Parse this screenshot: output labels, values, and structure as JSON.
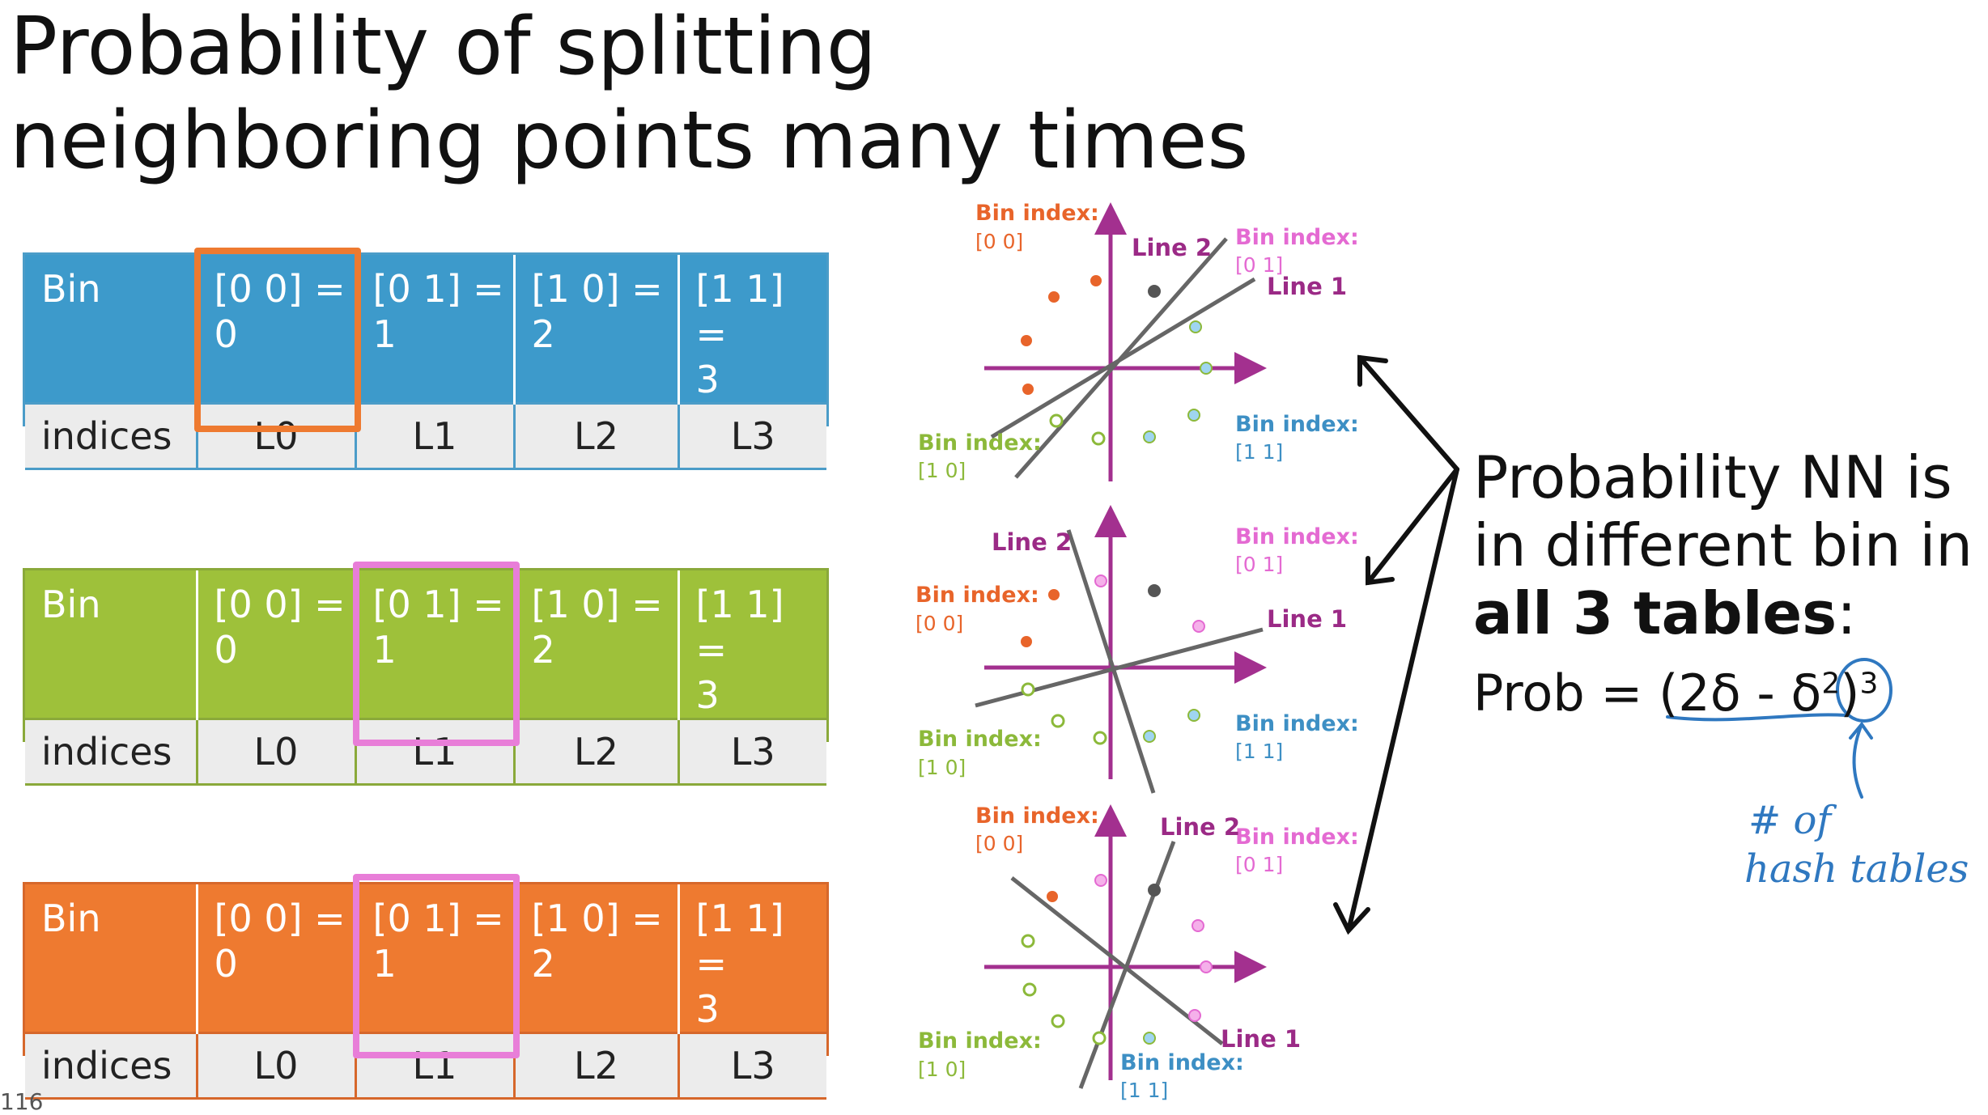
{
  "title_line1": "Probability of splitting",
  "title_line2": "neighboring points many times",
  "tables": [
    {
      "header": [
        "Bin",
        "[0 0] =\n0",
        "[0 1] =\n1",
        "[1 0] =\n2",
        "[1 1] =\n3"
      ],
      "row_label": "indices",
      "cells": [
        "L0",
        "L1",
        "L2",
        "L3"
      ],
      "color": "#3d9acb",
      "highlight_color": "#ee7a30"
    },
    {
      "header": [
        "Bin",
        "[0 0] =\n0",
        "[0 1] =\n1",
        "[1 0] =\n2",
        "[1 1] =\n3"
      ],
      "row_label": "indices",
      "cells": [
        "L0",
        "L1",
        "L2",
        "L3"
      ],
      "color": "#9ec13a",
      "highlight_color": "#e87ed8"
    },
    {
      "header": [
        "Bin",
        "[0 0] =\n0",
        "[0 1] =\n1",
        "[1 0] =\n2",
        "[1 1] =\n3"
      ],
      "row_label": "indices",
      "cells": [
        "L0",
        "L1",
        "L2",
        "L3"
      ],
      "color": "#ee7a30",
      "highlight_color": "#e87ed8"
    }
  ],
  "diagram_labels": {
    "bin_index": "Bin index:",
    "b00": "[0 0]",
    "b01": "[0 1]",
    "b10": "[1 0]",
    "b11": "[1 1]",
    "line1": "Line 1",
    "line2": "Line 2"
  },
  "colors": {
    "orange": "#e8642a",
    "pink": "#e46ad2",
    "green": "#8cb93a",
    "blue": "#3d8fc4",
    "purple": "#9b2a86"
  },
  "right_text": {
    "line1": "Probability NN is",
    "line2": "in different bin in",
    "bold": "all 3 tables",
    "colon": ":",
    "prob_prefix": "Prob = (2δ - δ",
    "prob_sq": "2",
    "prob_close": ")",
    "prob_exp": "3"
  },
  "annotation": {
    "line1": "# of",
    "line2": "hash tables"
  },
  "page_number": "116"
}
